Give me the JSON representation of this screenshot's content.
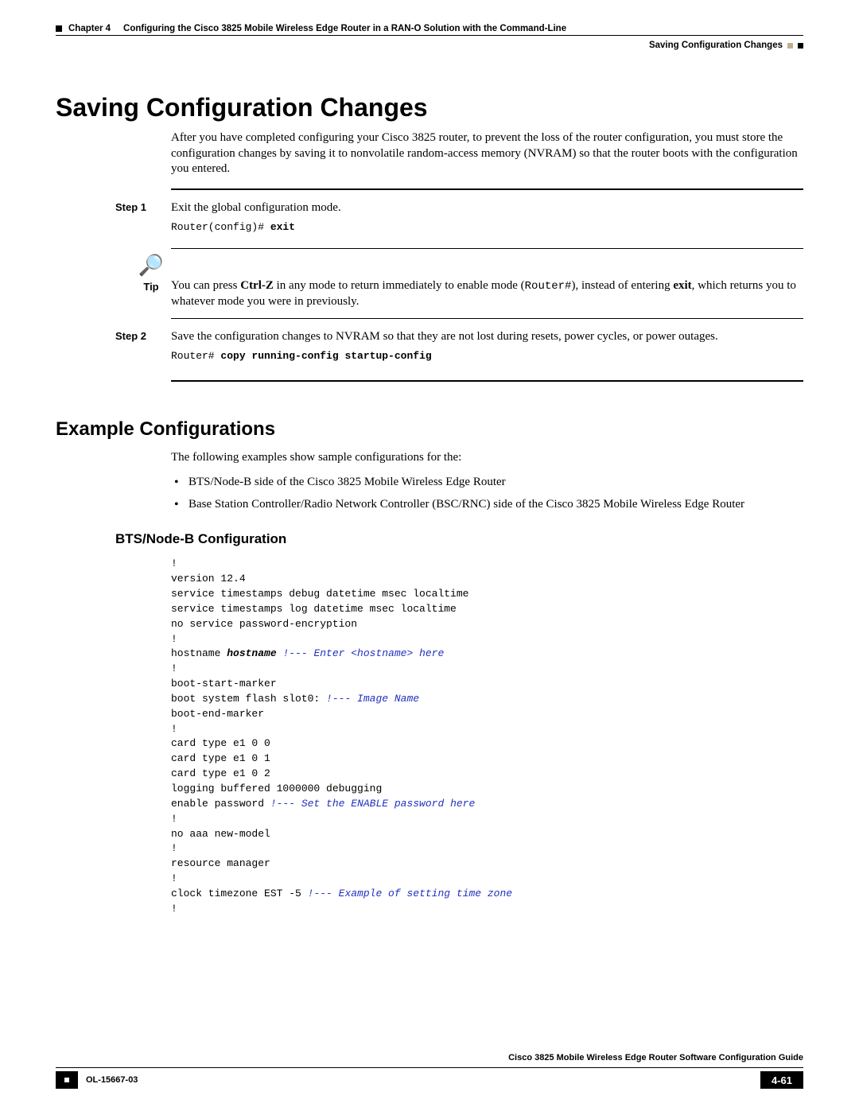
{
  "header": {
    "chapter_label": "Chapter 4",
    "chapter_title": "Configuring the Cisco 3825 Mobile Wireless Edge Router in a RAN-O Solution with the Command-Line",
    "section_right": "Saving Configuration Changes"
  },
  "h1": "Saving Configuration Changes",
  "intro": "After you have completed configuring your Cisco 3825 router, to prevent the loss of the router configuration, you must store the configuration changes by saving it to nonvolatile random-access memory (NVRAM) so that the router boots with the configuration you entered.",
  "step1": {
    "label": "Step 1",
    "text": "Exit the global configuration mode.",
    "code_prefix": "Router(config)# ",
    "code_cmd": "exit"
  },
  "tip": {
    "label": "Tip",
    "pre": "You can press ",
    "kbd": "Ctrl-Z",
    "mid": " in any mode to return immediately to enable mode (",
    "code": "Router#",
    "post1": "), instead of entering ",
    "bold_exit": "exit",
    "post2": ", which returns you to whatever mode you were in previously."
  },
  "step2": {
    "label": "Step 2",
    "text": "Save the configuration changes to NVRAM so that they are not lost during resets, power cycles, or power outages.",
    "code_prefix": "Router# ",
    "code_cmd": "copy running-config startup-config"
  },
  "h2": "Example Configurations",
  "examples_intro": "The following examples show sample configurations for the:",
  "bullet1": "BTS/Node-B side of the Cisco 3825 Mobile Wireless Edge Router",
  "bullet2": "Base Station Controller/Radio Network Controller (BSC/RNC) side of the Cisco 3825 Mobile Wireless Edge Router",
  "h3": "BTS/Node-B Configuration",
  "config": {
    "l1": "!",
    "l2": "version 12.4",
    "l3": "service timestamps debug datetime msec localtime",
    "l4": "service timestamps log datetime msec localtime",
    "l5": "no service password-encryption",
    "l6": "!",
    "l7a": "hostname ",
    "l7b": "hostname",
    "l7c": " !--- Enter <hostname> here",
    "l8": "!",
    "l9": "boot-start-marker",
    "l10a": "boot system flash slot0:",
    "l10b": " !--- Image Name",
    "l11": "boot-end-marker",
    "l12": "!",
    "l13": "card type e1 0 0",
    "l14": "card type e1 0 1",
    "l15": "card type e1 0 2",
    "l16": "logging buffered 1000000 debugging",
    "l17a": "enable password ",
    "l17b": "!--- Set the ENABLE password here",
    "l18": "!",
    "l19": "no aaa new-model",
    "l20": "!",
    "l21": "resource manager",
    "l22": "!",
    "l23a": "clock timezone EST -5 ",
    "l23b": "!--- Example of setting time zone",
    "l24": "!"
  },
  "footer": {
    "guide_title": "Cisco 3825 Mobile Wireless Edge Router Software Configuration Guide",
    "doc_id": "OL-15667-03",
    "page_num": "4-61"
  }
}
